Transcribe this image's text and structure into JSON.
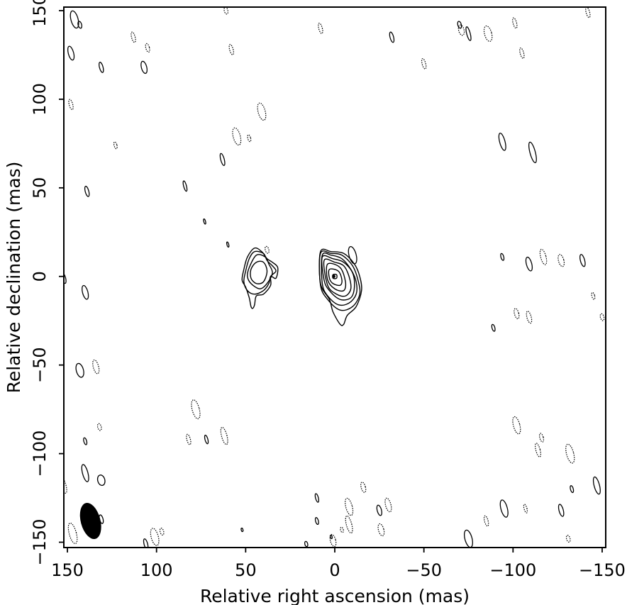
{
  "chart_data": {
    "type": "contour",
    "xlabel": "Relative right ascension (mas)",
    "ylabel": "Relative declination (mas)",
    "xlim": [
      152,
      -152
    ],
    "ylim": [
      -153,
      152
    ],
    "x_ticks": [
      150,
      100,
      50,
      0,
      -50,
      -100,
      -150
    ],
    "y_ticks": [
      150,
      100,
      50,
      0,
      -50,
      -100,
      -150
    ],
    "x_tick_labels": [
      "150",
      "100",
      "50",
      "0",
      "−50",
      "−100",
      "−150"
    ],
    "y_tick_labels": [
      "150",
      "100",
      "50",
      "0",
      "−50",
      "−100",
      "−150"
    ],
    "core": {
      "peak": [
        0.5,
        0
      ],
      "contours": [
        {
          "points": [
            [
              1,
              1
            ],
            [
              -1,
              1
            ],
            [
              -1,
              -1
            ],
            [
              1,
              -1
            ]
          ]
        },
        {
          "points": [
            [
              3,
              4
            ],
            [
              -2,
              3
            ],
            [
              -4,
              -2
            ],
            [
              -3,
              -5
            ],
            [
              1,
              -4
            ],
            [
              3,
              -1
            ]
          ]
        },
        {
          "points": [
            [
              4,
              7
            ],
            [
              -3,
              5
            ],
            [
              -6,
              -3
            ],
            [
              -5,
              -8
            ],
            [
              0,
              -7
            ],
            [
              4,
              -2
            ]
          ]
        },
        {
          "points": [
            [
              6,
              9
            ],
            [
              0,
              8
            ],
            [
              -5,
              6
            ],
            [
              -8,
              0
            ],
            [
              -9,
              -7
            ],
            [
              -6,
              -11
            ],
            [
              -1,
              -10
            ],
            [
              4,
              -5
            ]
          ]
        },
        {
          "points": [
            [
              7,
              11
            ],
            [
              1,
              10
            ],
            [
              -5,
              8
            ],
            [
              -10,
              2
            ],
            [
              -11,
              -6
            ],
            [
              -9,
              -12
            ],
            [
              -3,
              -13
            ],
            [
              3,
              -8
            ],
            [
              6,
              -2
            ]
          ]
        },
        {
          "points": [
            [
              7,
              12
            ],
            [
              2,
              12
            ],
            [
              -4,
              10
            ],
            [
              -9,
              4
            ],
            [
              -12,
              -3
            ],
            [
              -12,
              -10
            ],
            [
              -8,
              -15
            ],
            [
              -2,
              -16
            ],
            [
              4,
              -11
            ],
            [
              7,
              -4
            ]
          ]
        },
        {
          "points": [
            [
              8,
              13
            ],
            [
              2,
              13
            ],
            [
              -4,
              12
            ],
            [
              -10,
              6
            ],
            [
              -13,
              -2
            ],
            [
              -14,
              -10
            ],
            [
              -10,
              -17
            ],
            [
              -3,
              -19
            ],
            [
              4,
              -13
            ],
            [
              8,
              -5
            ]
          ]
        },
        {
          "points": [
            [
              8,
              14
            ],
            [
              2,
              14
            ],
            [
              -5,
              13
            ],
            [
              -11,
              7
            ],
            [
              -14,
              0
            ],
            [
              -15,
              -8
            ],
            [
              -12,
              -17
            ],
            [
              -7,
              -22
            ],
            [
              -5,
              -27
            ],
            [
              -3,
              -27
            ],
            [
              1,
              -20
            ],
            [
              3,
              -13
            ],
            [
              8,
              -4
            ]
          ]
        }
      ]
    },
    "blob": {
      "contours": [
        {
          "points": [
            [
              44,
              8
            ],
            [
              40,
              8
            ],
            [
              38,
              3
            ],
            [
              40,
              -3
            ],
            [
              44,
              -4
            ],
            [
              47,
              -1
            ],
            [
              47,
              4
            ]
          ]
        },
        {
          "points": [
            [
              44,
              12
            ],
            [
              39,
              11
            ],
            [
              37,
              7
            ],
            [
              35,
              2
            ],
            [
              38,
              -4
            ],
            [
              42,
              -7
            ],
            [
              47,
              -4
            ],
            [
              49,
              0
            ],
            [
              48,
              5
            ]
          ]
        },
        {
          "points": [
            [
              45,
              14
            ],
            [
              40,
              13
            ],
            [
              38,
              9
            ],
            [
              35,
              6
            ],
            [
              33,
              3
            ],
            [
              36,
              0
            ],
            [
              37,
              -4
            ],
            [
              40,
              -8
            ],
            [
              45,
              -10
            ],
            [
              49,
              -8
            ],
            [
              51,
              -3
            ],
            [
              50,
              3
            ],
            [
              48,
              10
            ]
          ]
        },
        {
          "points": [
            [
              45,
              16
            ],
            [
              41,
              14
            ],
            [
              38,
              10
            ],
            [
              35,
              8
            ],
            [
              32,
              5
            ],
            [
              33,
              -1
            ],
            [
              36,
              0
            ],
            [
              36,
              -5
            ],
            [
              40,
              -10
            ],
            [
              44,
              -11
            ],
            [
              45,
              -16
            ],
            [
              46,
              -18
            ],
            [
              47,
              -17
            ],
            [
              48,
              -12
            ],
            [
              50,
              -6
            ],
            [
              52,
              -2
            ],
            [
              51,
              4
            ],
            [
              49,
              11
            ]
          ]
        }
      ]
    },
    "beam": {
      "x": 137,
      "y": -138,
      "major": 11,
      "minor": 5,
      "angle": 15
    },
    "noise_positive": [
      {
        "x": 146,
        "y": 145,
        "rx": 2,
        "ry": 5
      },
      {
        "x": 143,
        "y": 142,
        "rx": 1,
        "ry": 2
      },
      {
        "x": 148,
        "y": 126,
        "rx": 1.5,
        "ry": 4
      },
      {
        "x": 131,
        "y": 118,
        "rx": 1,
        "ry": 3
      },
      {
        "x": 107,
        "y": 118,
        "rx": 1.5,
        "ry": 3.5
      },
      {
        "x": 139,
        "y": 48,
        "rx": 1,
        "ry": 3
      },
      {
        "x": 84,
        "y": 51,
        "rx": 0.8,
        "ry": 3
      },
      {
        "x": 63,
        "y": 66,
        "rx": 1,
        "ry": 3.5
      },
      {
        "x": 73,
        "y": 31,
        "rx": 0.5,
        "ry": 1.5
      },
      {
        "x": 60,
        "y": 18,
        "rx": 0.5,
        "ry": 1.5
      },
      {
        "x": -10,
        "y": 12,
        "rx": 2,
        "ry": 5
      },
      {
        "x": 140,
        "y": -9,
        "rx": 1.5,
        "ry": 4
      },
      {
        "x": 152,
        "y": -1,
        "rx": 1,
        "ry": 3
      },
      {
        "x": 143,
        "y": -53,
        "rx": 2,
        "ry": 4
      },
      {
        "x": 140,
        "y": -93,
        "rx": 0.8,
        "ry": 2
      },
      {
        "x": 140,
        "y": -111,
        "rx": 1.5,
        "ry": 5
      },
      {
        "x": 131,
        "y": -115,
        "rx": 2,
        "ry": 3
      },
      {
        "x": 131,
        "y": -137,
        "rx": 1,
        "ry": 2.5
      },
      {
        "x": 106,
        "y": -151,
        "rx": 1,
        "ry": 3
      },
      {
        "x": 52,
        "y": -143,
        "rx": 0.5,
        "ry": 1
      },
      {
        "x": 72,
        "y": -92,
        "rx": 0.8,
        "ry": 2.5
      },
      {
        "x": 16,
        "y": -151,
        "rx": 0.8,
        "ry": 1.5
      },
      {
        "x": 10,
        "y": -125,
        "rx": 0.8,
        "ry": 2.5
      },
      {
        "x": 10,
        "y": -138,
        "rx": 0.8,
        "ry": 2
      },
      {
        "x": 2,
        "y": -147,
        "rx": 0.5,
        "ry": 1
      },
      {
        "x": -25,
        "y": -132,
        "rx": 1.2,
        "ry": 3
      },
      {
        "x": -32,
        "y": 135,
        "rx": 1,
        "ry": 3
      },
      {
        "x": -70,
        "y": 142,
        "rx": 1,
        "ry": 2
      },
      {
        "x": -75,
        "y": 137,
        "rx": 1,
        "ry": 4
      },
      {
        "x": -94,
        "y": 76,
        "rx": 1.5,
        "ry": 5
      },
      {
        "x": -111,
        "y": 70,
        "rx": 1.5,
        "ry": 6
      },
      {
        "x": -94,
        "y": 11,
        "rx": 0.8,
        "ry": 2
      },
      {
        "x": -109,
        "y": 7,
        "rx": 1.5,
        "ry": 4
      },
      {
        "x": -139,
        "y": 9,
        "rx": 1.2,
        "ry": 3.5
      },
      {
        "x": -89,
        "y": -29,
        "rx": 0.8,
        "ry": 2
      },
      {
        "x": -75,
        "y": -148,
        "rx": 2,
        "ry": 5
      },
      {
        "x": -95,
        "y": -131,
        "rx": 1.8,
        "ry": 5
      },
      {
        "x": -127,
        "y": -132,
        "rx": 1.2,
        "ry": 3.5
      },
      {
        "x": -133,
        "y": -120,
        "rx": 0.8,
        "ry": 2
      },
      {
        "x": -147,
        "y": -118,
        "rx": 1.5,
        "ry": 5
      }
    ],
    "noise_negative": [
      {
        "x": 113,
        "y": 135,
        "rx": 1,
        "ry": 3
      },
      {
        "x": 105,
        "y": 129,
        "rx": 1,
        "ry": 2.5
      },
      {
        "x": 61,
        "y": 150,
        "rx": 1,
        "ry": 2
      },
      {
        "x": 58,
        "y": 128,
        "rx": 1,
        "ry": 3
      },
      {
        "x": 8,
        "y": 140,
        "rx": 1,
        "ry": 3
      },
      {
        "x": -50,
        "y": 120,
        "rx": 1,
        "ry": 3
      },
      {
        "x": -71,
        "y": 139,
        "rx": 1.5,
        "ry": 3
      },
      {
        "x": -86,
        "y": 137,
        "rx": 2,
        "ry": 4.5
      },
      {
        "x": -101,
        "y": 143,
        "rx": 1,
        "ry": 3
      },
      {
        "x": -105,
        "y": 126,
        "rx": 1,
        "ry": 3
      },
      {
        "x": -142,
        "y": 149,
        "rx": 1,
        "ry": 3
      },
      {
        "x": 148,
        "y": 97,
        "rx": 1,
        "ry": 3
      },
      {
        "x": 123,
        "y": 74,
        "rx": 0.8,
        "ry": 2
      },
      {
        "x": 55,
        "y": 79,
        "rx": 2,
        "ry": 5
      },
      {
        "x": 48,
        "y": 78,
        "rx": 0.8,
        "ry": 2
      },
      {
        "x": 41,
        "y": 93,
        "rx": 2,
        "ry": 5
      },
      {
        "x": 38,
        "y": 15,
        "rx": 1,
        "ry": 2
      },
      {
        "x": -117,
        "y": 11,
        "rx": 1.5,
        "ry": 4.5
      },
      {
        "x": -127,
        "y": 9,
        "rx": 1.5,
        "ry": 3.5
      },
      {
        "x": -102,
        "y": -21,
        "rx": 1.2,
        "ry": 3
      },
      {
        "x": -109,
        "y": -23,
        "rx": 1.2,
        "ry": 3.5
      },
      {
        "x": -145,
        "y": -11,
        "rx": 0.8,
        "ry": 2
      },
      {
        "x": -150,
        "y": -23,
        "rx": 1,
        "ry": 2
      },
      {
        "x": 134,
        "y": -51,
        "rx": 1.5,
        "ry": 4
      },
      {
        "x": 78,
        "y": -75,
        "rx": 2,
        "ry": 5.5
      },
      {
        "x": 82,
        "y": -92,
        "rx": 1,
        "ry": 3
      },
      {
        "x": 62,
        "y": -90,
        "rx": 1.5,
        "ry": 5
      },
      {
        "x": 132,
        "y": -85,
        "rx": 1,
        "ry": 2
      },
      {
        "x": -102,
        "y": -84,
        "rx": 1.8,
        "ry": 5
      },
      {
        "x": -116,
        "y": -91,
        "rx": 1,
        "ry": 2.5
      },
      {
        "x": -114,
        "y": -98,
        "rx": 1.2,
        "ry": 4
      },
      {
        "x": -132,
        "y": -100,
        "rx": 2,
        "ry": 5.5
      },
      {
        "x": 152,
        "y": -118,
        "rx": 1.2,
        "ry": 4.5
      },
      {
        "x": 138,
        "y": -136,
        "rx": 0.8,
        "ry": 1.5
      },
      {
        "x": 147,
        "y": -145,
        "rx": 2,
        "ry": 6
      },
      {
        "x": 101,
        "y": -147,
        "rx": 2,
        "ry": 5
      },
      {
        "x": 97,
        "y": -144,
        "rx": 1,
        "ry": 2
      },
      {
        "x": 1,
        "y": -149,
        "rx": 1.5,
        "ry": 3.5
      },
      {
        "x": -4,
        "y": -143,
        "rx": 0.8,
        "ry": 1.5
      },
      {
        "x": -8,
        "y": -140,
        "rx": 1.5,
        "ry": 5
      },
      {
        "x": -8,
        "y": -130,
        "rx": 1.8,
        "ry": 5
      },
      {
        "x": -16,
        "y": -119,
        "rx": 1.2,
        "ry": 3
      },
      {
        "x": -30,
        "y": -129,
        "rx": 1.5,
        "ry": 4
      },
      {
        "x": -26,
        "y": -143,
        "rx": 1.5,
        "ry": 3.5
      },
      {
        "x": -85,
        "y": -138,
        "rx": 1,
        "ry": 3
      },
      {
        "x": -107,
        "y": -131,
        "rx": 0.8,
        "ry": 2.5
      },
      {
        "x": -131,
        "y": -148,
        "rx": 1,
        "ry": 2
      }
    ]
  }
}
